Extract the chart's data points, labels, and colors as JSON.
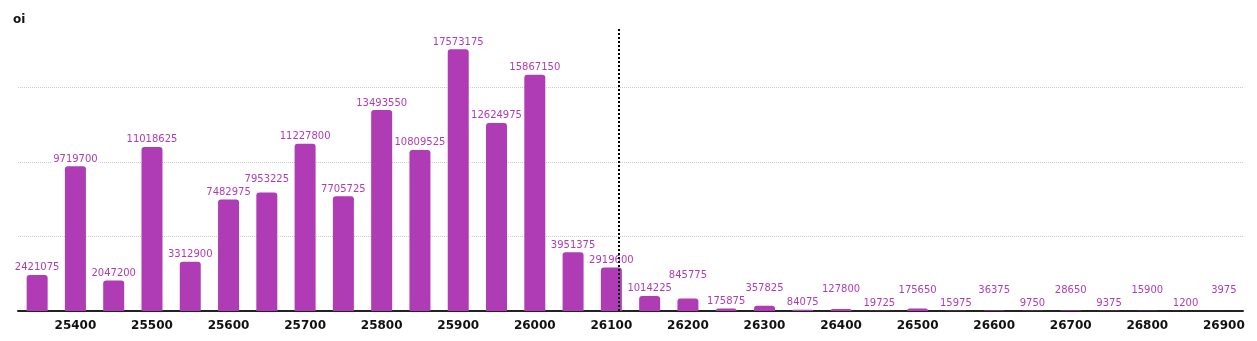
{
  "chart_data": {
    "type": "bar",
    "ylabel": "oi",
    "x": [
      25350,
      25400,
      25450,
      25500,
      25550,
      25600,
      25650,
      25700,
      25750,
      25800,
      25850,
      25900,
      25950,
      26000,
      26050,
      26100,
      26150,
      26200,
      26250,
      26300,
      26350,
      26400,
      26450,
      26500,
      26550,
      26600,
      26650,
      26700,
      26750,
      26800,
      26850,
      26900
    ],
    "values": [
      2421075,
      9719700,
      2047200,
      11018625,
      3312900,
      7482975,
      7953225,
      11227800,
      7705725,
      13493550,
      10809525,
      17573175,
      12624975,
      15867150,
      3951375,
      2919600,
      1014225,
      845775,
      175875,
      357825,
      84075,
      127800,
      19725,
      175650,
      15975,
      36375,
      9750,
      28650,
      9375,
      15900,
      1200,
      3975
    ],
    "color": "#b03cb5",
    "data_labels": true,
    "xlim": [
      25325,
      26925
    ],
    "xticks": [
      25400,
      25500,
      25600,
      25700,
      25800,
      25900,
      26000,
      26100,
      26200,
      26300,
      26400,
      26500,
      26600,
      26700,
      26800,
      26900
    ],
    "ylim": [
      0,
      19000000
    ],
    "yticks": [
      {
        "value": 0,
        "label": null
      },
      {
        "value": 5000000,
        "label": null
      },
      {
        "value": 10000000,
        "label": null
      },
      {
        "value": 15000000,
        "label": null
      }
    ],
    "grid": "y",
    "tick_labels": "x",
    "ref_lines": [
      {
        "axis": "x",
        "value": 26110,
        "label": null,
        "color": "#000000",
        "line_style": "dotted"
      }
    ]
  }
}
